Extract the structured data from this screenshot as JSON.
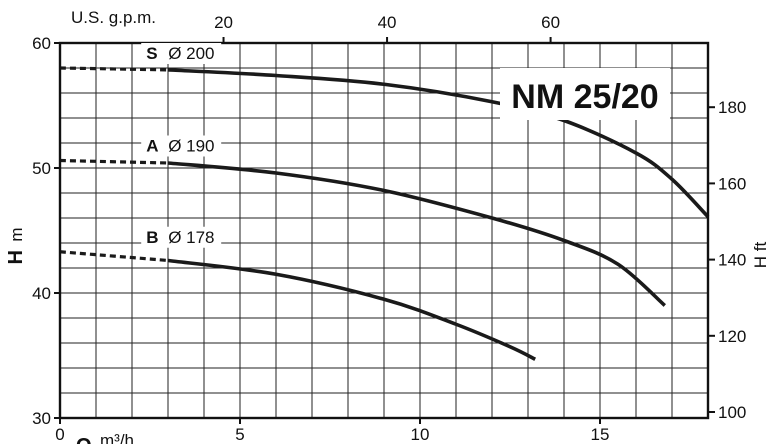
{
  "chart_data": {
    "type": "line",
    "title": "NM 25/20",
    "x": {
      "label_symbol": "Q",
      "label_unit": "m³/h",
      "range": [
        0,
        18
      ],
      "ticks": [
        0,
        5,
        10,
        15
      ],
      "grid_step": 1
    },
    "x_top": {
      "label": "U.S. g.p.m.",
      "factor": 4.4029,
      "ticks": [
        20,
        40,
        60
      ]
    },
    "y": {
      "label_symbol": "H",
      "label_unit": "m",
      "range": [
        30,
        60
      ],
      "ticks": [
        30,
        40,
        50,
        60
      ],
      "grid_step": 2
    },
    "y_right": {
      "label": "H ft",
      "factor": 3.28084,
      "ticks": [
        100,
        120,
        140,
        160,
        180
      ]
    },
    "grid": true,
    "series": [
      {
        "name": "S",
        "diameter": "Ø 200",
        "dashed_points": [
          [
            0,
            58.0
          ],
          [
            3,
            57.85
          ]
        ],
        "points": [
          [
            3,
            57.85
          ],
          [
            6,
            57.4
          ],
          [
            9,
            56.7
          ],
          [
            12,
            55.3
          ],
          [
            14,
            53.8
          ],
          [
            16,
            51.2
          ],
          [
            17,
            49.1
          ],
          [
            18,
            46.1
          ]
        ]
      },
      {
        "name": "A",
        "diameter": "Ø 190",
        "dashed_points": [
          [
            0,
            50.6
          ],
          [
            3,
            50.4
          ]
        ],
        "points": [
          [
            3,
            50.4
          ],
          [
            6,
            49.6
          ],
          [
            9,
            48.2
          ],
          [
            12,
            46.0
          ],
          [
            14,
            44.2
          ],
          [
            15.5,
            42.3
          ],
          [
            16.8,
            39.0
          ]
        ]
      },
      {
        "name": "B",
        "diameter": "Ø 178",
        "dashed_points": [
          [
            0,
            43.3
          ],
          [
            3,
            42.6
          ]
        ],
        "points": [
          [
            3,
            42.6
          ],
          [
            6,
            41.5
          ],
          [
            9,
            39.5
          ],
          [
            11,
            37.5
          ],
          [
            12.5,
            35.7
          ],
          [
            13.2,
            34.7
          ]
        ]
      }
    ]
  }
}
